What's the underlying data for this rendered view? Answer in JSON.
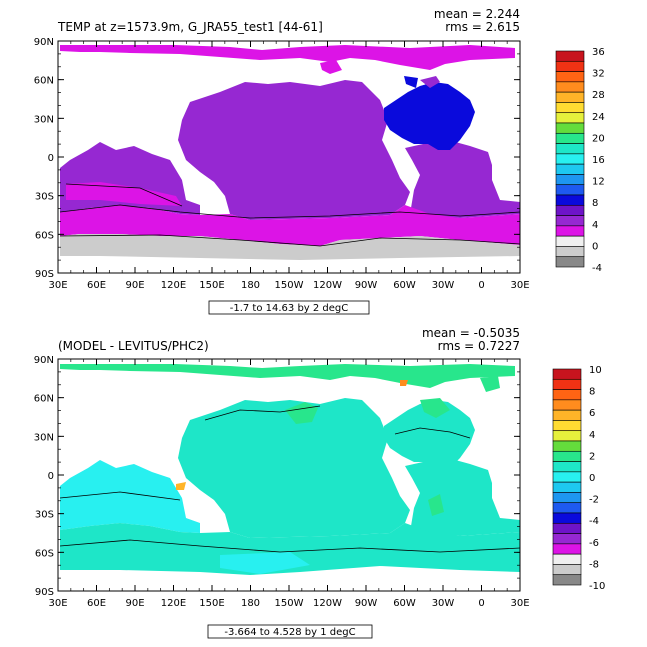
{
  "colors": {
    "land": "#ffffff",
    "frame": "#000000"
  },
  "chart_data": [
    {
      "type": "heatmap",
      "title": "TEMP at z=1573.9m, G_JRA55_test1 [44-61]",
      "stats": {
        "mean": "mean = 2.244",
        "rms": "rms = 2.615"
      },
      "range_label": "-1.7 to 14.63 by 2 degC",
      "xlabel": "",
      "ylabel": "",
      "x_ticks": [
        "30E",
        "60E",
        "90E",
        "120E",
        "150E",
        "180",
        "150W",
        "120W",
        "90W",
        "60W",
        "30W",
        "0",
        "30E"
      ],
      "y_ticks": [
        "90N",
        "60N",
        "30N",
        "0",
        "30S",
        "60S",
        "90S"
      ],
      "xlim": [
        30,
        390
      ],
      "ylim": [
        -90,
        90
      ],
      "colorbar": {
        "labels": [
          "36",
          "32",
          "28",
          "24",
          "20",
          "16",
          "12",
          "8",
          "4",
          "0",
          "-4"
        ],
        "colors": [
          "#c8141e",
          "#f03214",
          "#ff6414",
          "#ff8c1e",
          "#ffb428",
          "#ffdc32",
          "#e6f03c",
          "#64dc3c",
          "#28e68c",
          "#1ee6c8",
          "#28f0f0",
          "#1ec8f0",
          "#1e96f0",
          "#1e5af0",
          "#0a0adc",
          "#6e14c8",
          "#9628d2",
          "#dc14e6",
          "#f0f0f0",
          "#cccccc",
          "#888888"
        ]
      },
      "fields": [
        {
          "name": "0 to 2 degC",
          "color": "#f0f0f0"
        },
        {
          "name": "2 to 4 degC",
          "color": "#9628d2"
        },
        {
          "name": "4 to 6 degC",
          "color": "#6e14c8"
        }
      ]
    },
    {
      "type": "heatmap",
      "title": "(MODEL - LEVITUS/PHC2)",
      "stats": {
        "mean": "mean = -0.5035",
        "rms": "rms = 0.7227"
      },
      "range_label": "-3.664 to 4.528 by 1 degC",
      "xlabel": "",
      "ylabel": "",
      "x_ticks": [
        "30E",
        "60E",
        "90E",
        "120E",
        "150E",
        "180",
        "150W",
        "120W",
        "90W",
        "60W",
        "30W",
        "0",
        "30E"
      ],
      "y_ticks": [
        "90N",
        "60N",
        "30N",
        "0",
        "30S",
        "60S",
        "90S"
      ],
      "xlim": [
        30,
        390
      ],
      "ylim": [
        -90,
        90
      ],
      "colorbar": {
        "labels": [
          "10",
          "8",
          "6",
          "4",
          "2",
          "0",
          "-2",
          "-4",
          "-6",
          "-8",
          "-10"
        ],
        "colors": [
          "#c8141e",
          "#f03214",
          "#ff6414",
          "#ff8c1e",
          "#ffb428",
          "#ffdc32",
          "#e6f03c",
          "#64dc3c",
          "#28e68c",
          "#1ee6c8",
          "#28f0f0",
          "#1ec8f0",
          "#1e96f0",
          "#1e5af0",
          "#0a0adc",
          "#6e14c8",
          "#9628d2",
          "#dc14e6",
          "#f0f0f0",
          "#cccccc",
          "#888888"
        ]
      },
      "fields": [
        {
          "name": "0 to 1 degC",
          "color": "#1ee6c8"
        },
        {
          "name": "-1 to 0 degC",
          "color": "#28f0f0"
        },
        {
          "name": "1 to 2 degC",
          "color": "#28e68c"
        }
      ]
    }
  ]
}
